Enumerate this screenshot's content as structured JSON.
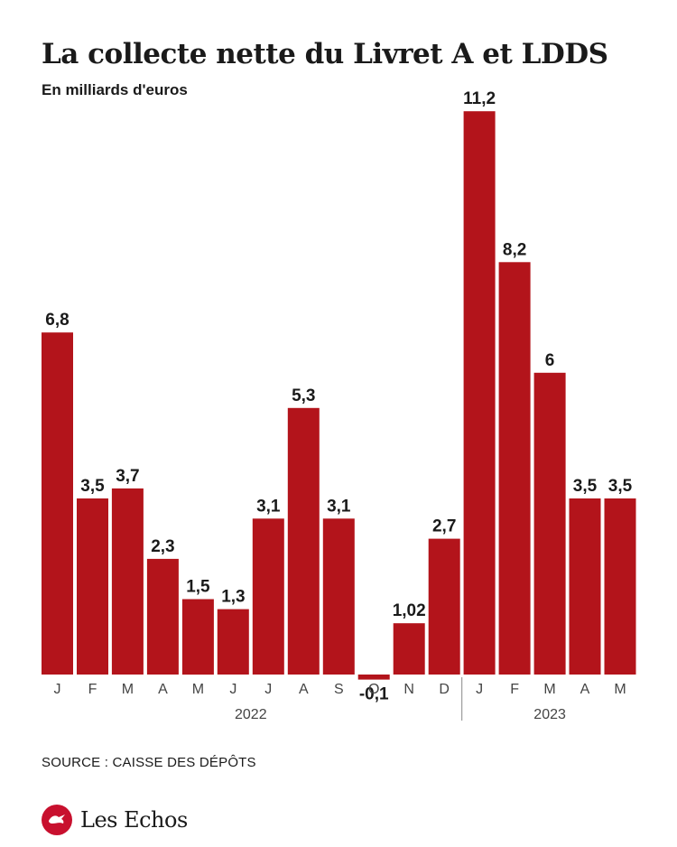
{
  "header": {
    "title": "La collecte nette du Livret A et LDDS",
    "subtitle": "En milliards d'euros"
  },
  "chart_data": {
    "type": "bar",
    "categories": [
      "J",
      "F",
      "M",
      "A",
      "M",
      "J",
      "J",
      "A",
      "S",
      "O",
      "N",
      "D",
      "J",
      "F",
      "M",
      "A",
      "M"
    ],
    "year_groups": [
      {
        "label": "2022",
        "count": 12
      },
      {
        "label": "2023",
        "count": 5
      }
    ],
    "values": [
      6.8,
      3.5,
      3.7,
      2.3,
      1.5,
      1.3,
      3.1,
      5.3,
      3.1,
      -0.1,
      1.02,
      2.7,
      11.2,
      8.2,
      6,
      3.5,
      3.5
    ],
    "value_labels": [
      "6,8",
      "3,5",
      "3,7",
      "2,3",
      "1,5",
      "1,3",
      "3,1",
      "5,3",
      "3,1",
      "-0,1",
      "1,02",
      "2,7",
      "11,2",
      "8,2",
      "6",
      "3,5",
      "3,5"
    ],
    "bar_color": "#b3141b",
    "xlabel": "",
    "ylabel": "",
    "grid": false
  },
  "footer": {
    "source": "SOURCE : CAISSE DES DÉPÔTS",
    "brand": "Les Echos",
    "brand_color": "#c8102e"
  }
}
